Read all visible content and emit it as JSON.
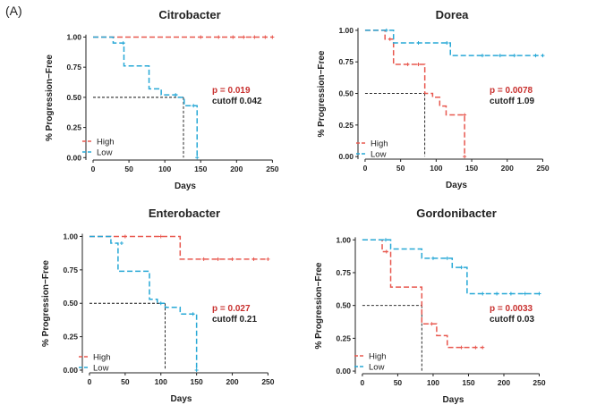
{
  "figure_label": "(A)",
  "colors": {
    "high": "#e8584f",
    "low": "#27a8d6",
    "pvalue": "#c8302e",
    "axis": "#222222"
  },
  "chart_data": [
    {
      "type": "line",
      "title": "Citrobacter",
      "xlabel": "Days",
      "ylabel": "% Progression−Free",
      "xlim": [
        -10,
        262
      ],
      "ylim": [
        -0.02,
        1.07
      ],
      "x_ticks": [
        0,
        50,
        100,
        150,
        200,
        250
      ],
      "y_ticks": [
        0,
        0.25,
        0.5,
        0.75,
        1.0
      ],
      "y_tick_labels": [
        "0.00",
        "0.25",
        "0.50",
        "0.75",
        "1.00"
      ],
      "legend": [
        "High",
        "Low"
      ],
      "p_value": "p = 0.019",
      "cutoff": "cutoff  0.042",
      "median_line": {
        "x": 126,
        "y": 0.5
      },
      "series": [
        {
          "name": "High",
          "steps": [
            [
              0,
              1.0
            ],
            [
              250,
              1.0
            ]
          ],
          "censored": [
            [
              150,
              1.0
            ],
            [
              175,
              1.0
            ],
            [
              195,
              1.0
            ],
            [
              210,
              1.0
            ],
            [
              225,
              1.0
            ],
            [
              240,
              1.0
            ],
            [
              250,
              1.0
            ]
          ]
        },
        {
          "name": "Low",
          "steps": [
            [
              0,
              1.0
            ],
            [
              28,
              0.95
            ],
            [
              43,
              0.76
            ],
            [
              78,
              0.57
            ],
            [
              95,
              0.52
            ],
            [
              117,
              0.5
            ],
            [
              127,
              0.43
            ],
            [
              145,
              0.0
            ]
          ],
          "censored": [
            [
              42,
              0.95
            ],
            [
              115,
              0.52
            ],
            [
              140,
              0.43
            ],
            [
              145,
              0.0
            ]
          ]
        }
      ]
    },
    {
      "type": "line",
      "title": "Dorea",
      "xlabel": "Days",
      "ylabel": "% Progression−Free",
      "xlim": [
        -10,
        262
      ],
      "ylim": [
        -0.02,
        1.07
      ],
      "x_ticks": [
        0,
        50,
        100,
        150,
        200,
        250
      ],
      "y_ticks": [
        0,
        0.25,
        0.5,
        0.75,
        1.0
      ],
      "y_tick_labels": [
        "0.00",
        "0.25",
        "0.50",
        "0.75",
        "1.00"
      ],
      "legend": [
        "High",
        "Low"
      ],
      "p_value": "p = 0.0078",
      "cutoff": "cutoff 1.09",
      "median_line": {
        "x": 84,
        "y": 0.5
      },
      "series": [
        {
          "name": "High",
          "steps": [
            [
              0,
              1.0
            ],
            [
              28,
              0.93
            ],
            [
              40,
              0.73
            ],
            [
              84,
              0.5
            ],
            [
              95,
              0.47
            ],
            [
              105,
              0.4
            ],
            [
              114,
              0.33
            ],
            [
              140,
              0.0
            ]
          ],
          "censored": [
            [
              35,
              0.93
            ],
            [
              60,
              0.73
            ],
            [
              75,
              0.73
            ],
            [
              140,
              0.33
            ],
            [
              140,
              0.0
            ]
          ]
        },
        {
          "name": "Low",
          "steps": [
            [
              0,
              1.0
            ],
            [
              40,
              0.9
            ],
            [
              120,
              0.8
            ],
            [
              250,
              0.8
            ]
          ],
          "censored": [
            [
              30,
              1.0
            ],
            [
              75,
              0.9
            ],
            [
              115,
              0.9
            ],
            [
              165,
              0.8
            ],
            [
              190,
              0.8
            ],
            [
              210,
              0.8
            ],
            [
              240,
              0.8
            ],
            [
              250,
              0.8
            ]
          ]
        }
      ]
    },
    {
      "type": "line",
      "title": "Enterobacter",
      "xlabel": "Days",
      "ylabel": "% Progression−Free",
      "xlim": [
        -10,
        262
      ],
      "ylim": [
        -0.02,
        1.07
      ],
      "x_ticks": [
        0,
        50,
        100,
        150,
        200,
        250
      ],
      "y_ticks": [
        0,
        0.25,
        0.5,
        0.75,
        1.0
      ],
      "y_tick_labels": [
        "0.00",
        "0.25",
        "0.50",
        "0.75",
        "1.00"
      ],
      "legend": [
        "High",
        "Low"
      ],
      "p_value": "p = 0.027",
      "cutoff": "cutoff 0.21",
      "median_line": {
        "x": 106,
        "y": 0.5
      },
      "series": [
        {
          "name": "High",
          "steps": [
            [
              0,
              1.0
            ],
            [
              127,
              0.83
            ],
            [
              250,
              0.83
            ]
          ],
          "censored": [
            [
              50,
              1.0
            ],
            [
              100,
              1.0
            ],
            [
              160,
              0.83
            ],
            [
              180,
              0.83
            ],
            [
              200,
              0.83
            ],
            [
              230,
              0.83
            ],
            [
              250,
              0.83
            ]
          ]
        },
        {
          "name": "Low",
          "steps": [
            [
              0,
              1.0
            ],
            [
              30,
              0.95
            ],
            [
              40,
              0.74
            ],
            [
              84,
              0.53
            ],
            [
              95,
              0.5
            ],
            [
              106,
              0.47
            ],
            [
              127,
              0.42
            ],
            [
              150,
              0.0
            ]
          ],
          "censored": [
            [
              45,
              0.95
            ],
            [
              100,
              0.5
            ],
            [
              145,
              0.42
            ],
            [
              150,
              0.0
            ]
          ]
        }
      ]
    },
    {
      "type": "line",
      "title": "Gordonibacter",
      "xlabel": "Days",
      "ylabel": "% Progression−Free",
      "xlim": [
        -10,
        262
      ],
      "ylim": [
        -0.02,
        1.07
      ],
      "x_ticks": [
        0,
        50,
        100,
        150,
        200,
        250
      ],
      "y_ticks": [
        0,
        0.25,
        0.5,
        0.75,
        1.0
      ],
      "y_tick_labels": [
        "0.00",
        "0.25",
        "0.50",
        "0.75",
        "1.00"
      ],
      "legend": [
        "High",
        "Low"
      ],
      "p_value": "p = 0.0033",
      "cutoff": "cutoff 0.03",
      "median_line": {
        "x": 84,
        "y": 0.5
      },
      "series": [
        {
          "name": "High",
          "steps": [
            [
              0,
              1.0
            ],
            [
              28,
              0.91
            ],
            [
              40,
              0.64
            ],
            [
              84,
              0.36
            ],
            [
              105,
              0.27
            ],
            [
              120,
              0.18
            ],
            [
              170,
              0.18
            ]
          ],
          "censored": [
            [
              34,
              0.91
            ],
            [
              98,
              0.36
            ],
            [
              140,
              0.18
            ],
            [
              160,
              0.18
            ],
            [
              170,
              0.18
            ]
          ]
        },
        {
          "name": "Low",
          "steps": [
            [
              0,
              1.0
            ],
            [
              40,
              0.93
            ],
            [
              84,
              0.86
            ],
            [
              127,
              0.79
            ],
            [
              148,
              0.59
            ],
            [
              250,
              0.59
            ]
          ],
          "censored": [
            [
              33,
              1.0
            ],
            [
              100,
              0.86
            ],
            [
              120,
              0.86
            ],
            [
              140,
              0.79
            ],
            [
              170,
              0.59
            ],
            [
              190,
              0.59
            ],
            [
              210,
              0.59
            ],
            [
              230,
              0.59
            ],
            [
              250,
              0.59
            ]
          ]
        }
      ]
    }
  ]
}
